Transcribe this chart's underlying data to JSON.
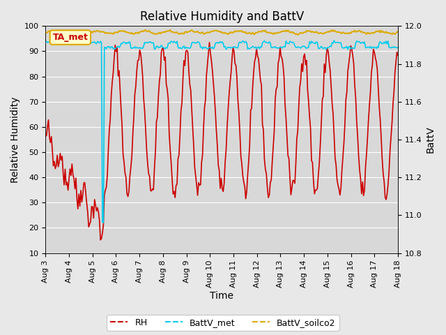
{
  "title": "Relative Humidity and BattV",
  "xlabel": "Time",
  "ylabel_left": "Relative Humidity",
  "ylabel_right": "BattV",
  "ylim_left": [
    10,
    100
  ],
  "ylim_right": [
    10.8,
    12.0
  ],
  "yticks_left": [
    10,
    20,
    30,
    40,
    50,
    60,
    70,
    80,
    90,
    100
  ],
  "yticks_right": [
    10.8,
    11.0,
    11.2,
    11.4,
    11.6,
    11.8,
    12.0
  ],
  "xtick_labels": [
    "Aug 3",
    "Aug 4",
    "Aug 5",
    "Aug 6",
    "Aug 7",
    "Aug 8",
    "Aug 9",
    "Aug 10",
    "Aug 11",
    "Aug 12",
    "Aug 13",
    "Aug 14",
    "Aug 15",
    "Aug 16",
    "Aug 17",
    "Aug 18"
  ],
  "bg_color": "#e8e8e8",
  "plot_bg_color": "#d8d8d8",
  "grid_color": "#ffffff",
  "rh_color": "#cc0000",
  "battv_met_color": "#00ccee",
  "battv_soilco2_color": "#ddaa00",
  "annotation_text": "TA_met",
  "annotation_bg": "#ffffcc",
  "annotation_border": "#ddaa00",
  "annotation_text_color": "#cc0000",
  "legend_labels": [
    "RH",
    "BattV_met",
    "BattV_soilco2"
  ]
}
